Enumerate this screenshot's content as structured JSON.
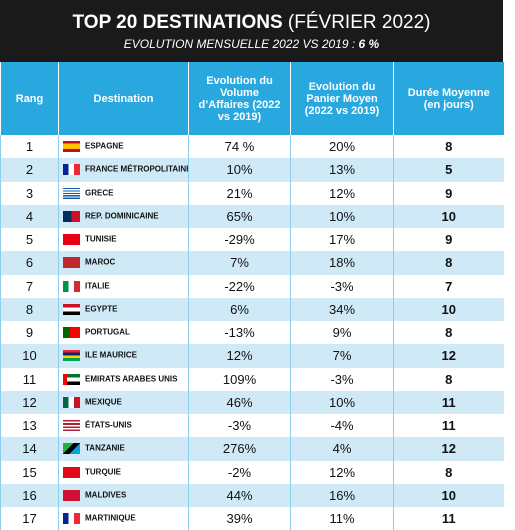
{
  "header": {
    "title": "TOP 20 DESTINATIONS",
    "title_suffix": "(FÉVRIER 2022)",
    "subtitle": "EVOLUTION MENSUELLE 2022 VS 2019 :",
    "subtitle_value": "6 %"
  },
  "table": {
    "columns": [
      "Rang",
      "Destination",
      "Evolution du Volume d’Affaires (2022 vs 2019)",
      "Evolution du Panier Moyen (2022 vs 2019)",
      "Durée Moyenne (en jours)"
    ],
    "rows": [
      [
        1,
        "ESPAGNE",
        "74 %",
        "20%",
        8
      ],
      [
        2,
        "FRANCE MÉTROPOLITAINE",
        "10%",
        "13%",
        5
      ],
      [
        3,
        "GRECE",
        "21%",
        "12%",
        9
      ],
      [
        4,
        "REP. DOMINICAINE",
        "65%",
        "10%",
        10
      ],
      [
        5,
        "TUNISIE",
        "-29%",
        "17%",
        9
      ],
      [
        6,
        "MAROC",
        "7%",
        "18%",
        8
      ],
      [
        7,
        "ITALIE",
        "-22%",
        "-3%",
        7
      ],
      [
        8,
        "EGYPTE",
        "6%",
        "34%",
        10
      ],
      [
        9,
        "PORTUGAL",
        "-13%",
        "9%",
        8
      ],
      [
        10,
        "ILE MAURICE",
        "12%",
        "7%",
        12
      ],
      [
        11,
        "EMIRATS ARABES UNIS",
        "109%",
        "-3%",
        8
      ],
      [
        12,
        "MEXIQUE",
        "46%",
        "10%",
        11
      ],
      [
        13,
        "ÉTATS-UNIS",
        "-3%",
        "-4%",
        11
      ],
      [
        14,
        "TANZANIE",
        "276%",
        "4%",
        12
      ],
      [
        15,
        "TURQUIE",
        "-2%",
        "12%",
        8
      ],
      [
        16,
        "MALDIVES",
        "44%",
        "16%",
        10
      ],
      [
        17,
        "MARTINIQUE",
        "39%",
        "11%",
        11
      ]
    ]
  }
}
